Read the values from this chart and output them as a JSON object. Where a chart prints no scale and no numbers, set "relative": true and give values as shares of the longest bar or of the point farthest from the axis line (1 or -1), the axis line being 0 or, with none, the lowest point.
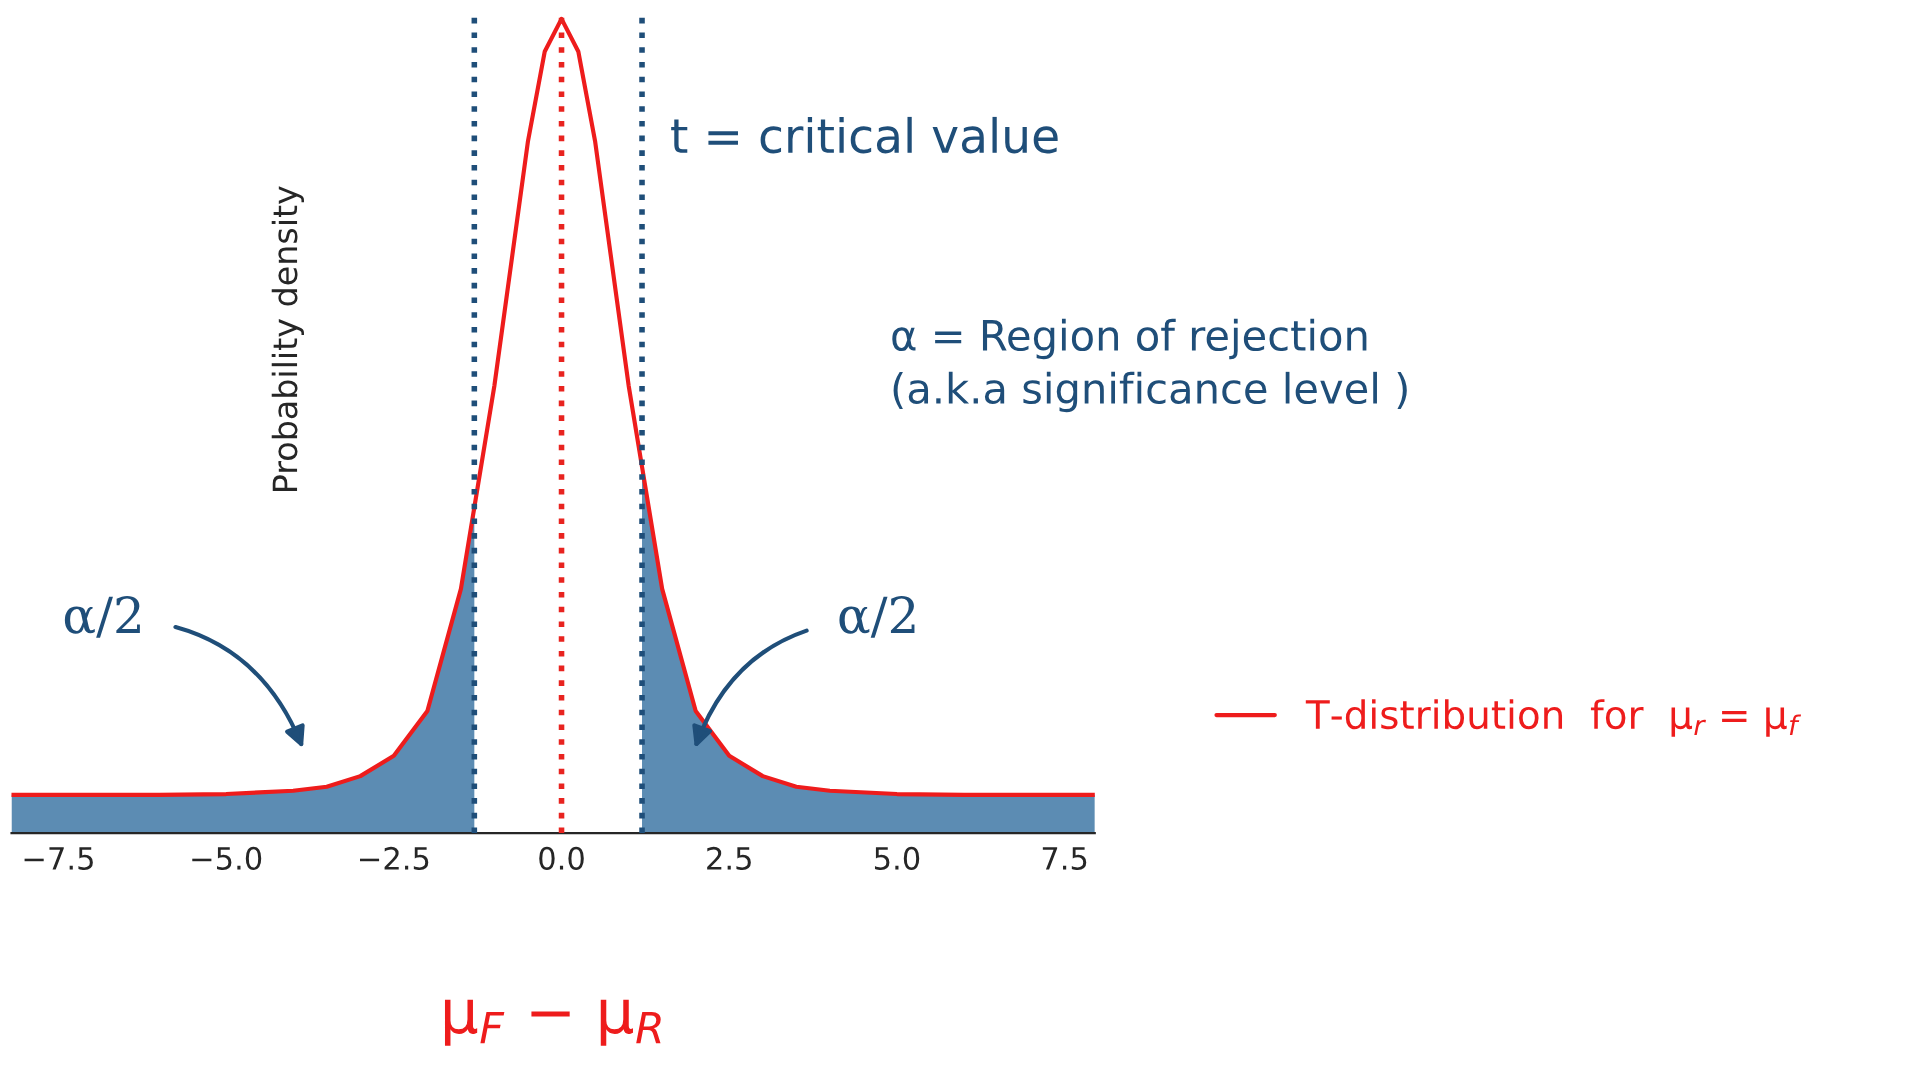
{
  "chart_data": {
    "type": "line",
    "relative": true,
    "xlabel": "μ$_{F}$ − μ$_{R}$",
    "ylabel": "Probability density",
    "x": [
      -8.2,
      -6,
      -5,
      -4,
      -3.5,
      -3,
      -2.5,
      -2,
      -1.5,
      -1.3,
      -1,
      -0.75,
      -0.5,
      -0.25,
      0,
      0.25,
      0.5,
      0.75,
      1,
      1.2,
      1.5,
      2,
      2.5,
      3,
      3.5,
      4,
      5,
      6,
      7.95
    ],
    "series": [
      {
        "name": "T-distribution  for  μ$_{r}$ = μ$_{f}$",
        "color": "#ee1c1c",
        "values": [
          0.047,
          0.047,
          0.048,
          0.052,
          0.057,
          0.07,
          0.095,
          0.15,
          0.3,
          0.4,
          0.55,
          0.7,
          0.85,
          0.96,
          1.0,
          0.96,
          0.85,
          0.7,
          0.55,
          0.45,
          0.3,
          0.15,
          0.095,
          0.07,
          0.057,
          0.052,
          0.048,
          0.047,
          0.047
        ]
      },
      {
        "color": "#4a7fab",
        "type": "area",
        "values": [
          0.047,
          0.047,
          0.048,
          0.052,
          0.057,
          0.07,
          0.095,
          0.15,
          0.3,
          0.4,
          null,
          null,
          null,
          null,
          null,
          null,
          null,
          null,
          null,
          0.45,
          0.3,
          0.15,
          0.095,
          0.07,
          0.057,
          0.052,
          0.048,
          0.047,
          0.047
        ]
      }
    ],
    "xlim": [
      -8.2,
      7.95
    ],
    "xticks": [
      {
        "value": -7.5,
        "label": "−7.5"
      },
      {
        "value": -5.0,
        "label": "−5.0"
      },
      {
        "value": -2.5,
        "label": "−2.5"
      },
      {
        "value": 0.0,
        "label": "0.0"
      },
      {
        "value": 2.5,
        "label": "2.5"
      },
      {
        "value": 5.0,
        "label": "5.0"
      },
      {
        "value": 7.5,
        "label": "7.5"
      }
    ],
    "ref_lines": [
      {
        "axis": "x",
        "value": 0,
        "color": "#e8231f",
        "line_style": "dotted"
      },
      {
        "axis": "x",
        "value": -1.3,
        "color": "#1f4e79",
        "line_style": "dotted"
      },
      {
        "axis": "x",
        "value": 1.2,
        "color": "#1f4e79",
        "line_style": "dotted"
      }
    ],
    "annotations": [
      "t = critical value",
      "α = Region of rejection\n(a.k.a significance level )",
      "α/2",
      "α/2"
    ],
    "legend": "right",
    "grid": false,
    "marker": "none",
    "tick_labels": "x"
  }
}
